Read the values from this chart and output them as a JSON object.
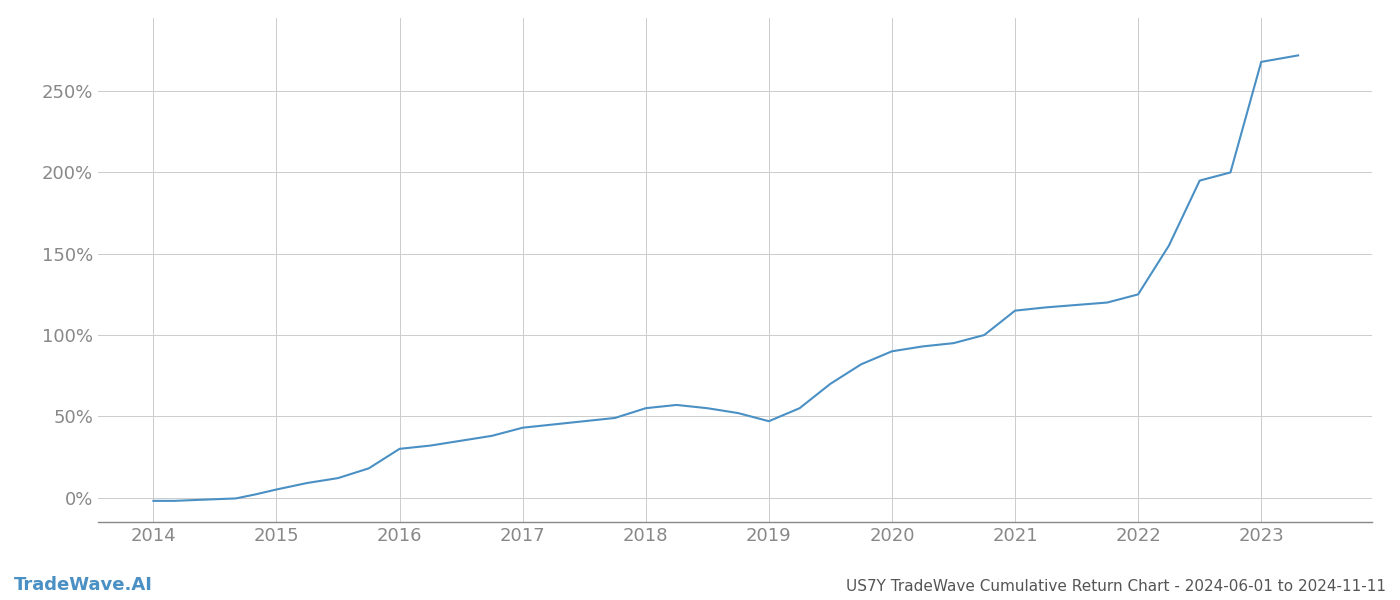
{
  "title": "US7Y TradeWave Cumulative Return Chart - 2024-06-01 to 2024-11-11",
  "watermark": "TradeWave.AI",
  "line_color": "#4a90c4",
  "background_color": "#ffffff",
  "grid_color": "#cccccc",
  "x_values": [
    2014.0,
    2014.17,
    2014.33,
    2014.5,
    2014.67,
    2014.83,
    2015.0,
    2015.25,
    2015.5,
    2015.75,
    2016.0,
    2016.25,
    2016.5,
    2016.75,
    2017.0,
    2017.25,
    2017.5,
    2017.75,
    2018.0,
    2018.25,
    2018.5,
    2018.75,
    2019.0,
    2019.25,
    2019.5,
    2019.75,
    2020.0,
    2020.25,
    2020.5,
    2020.75,
    2021.0,
    2021.25,
    2021.5,
    2021.75,
    2022.0,
    2022.25,
    2022.5,
    2022.75,
    2023.0,
    2023.3
  ],
  "y_values": [
    -2.0,
    -2.0,
    -1.5,
    -1.0,
    -0.5,
    2.0,
    5.0,
    9.0,
    12.0,
    18.0,
    30.0,
    32.0,
    35.0,
    38.0,
    43.0,
    45.0,
    47.0,
    49.0,
    55.0,
    57.0,
    55.0,
    52.0,
    47.0,
    55.0,
    70.0,
    82.0,
    90.0,
    93.0,
    95.0,
    100.0,
    115.0,
    117.0,
    118.5,
    120.0,
    125.0,
    155.0,
    195.0,
    200.0,
    268.0,
    272.0
  ],
  "yticks": [
    0,
    50,
    100,
    150,
    200,
    250
  ],
  "ylim": [
    -15,
    295
  ],
  "xlim": [
    2013.55,
    2023.9
  ],
  "xticks": [
    2014,
    2015,
    2016,
    2017,
    2018,
    2019,
    2020,
    2021,
    2022,
    2023
  ],
  "line_width": 1.5,
  "title_fontsize": 11,
  "tick_fontsize": 13,
  "watermark_fontsize": 13,
  "title_color": "#555555",
  "tick_color": "#888888",
  "axis_color": "#888888"
}
